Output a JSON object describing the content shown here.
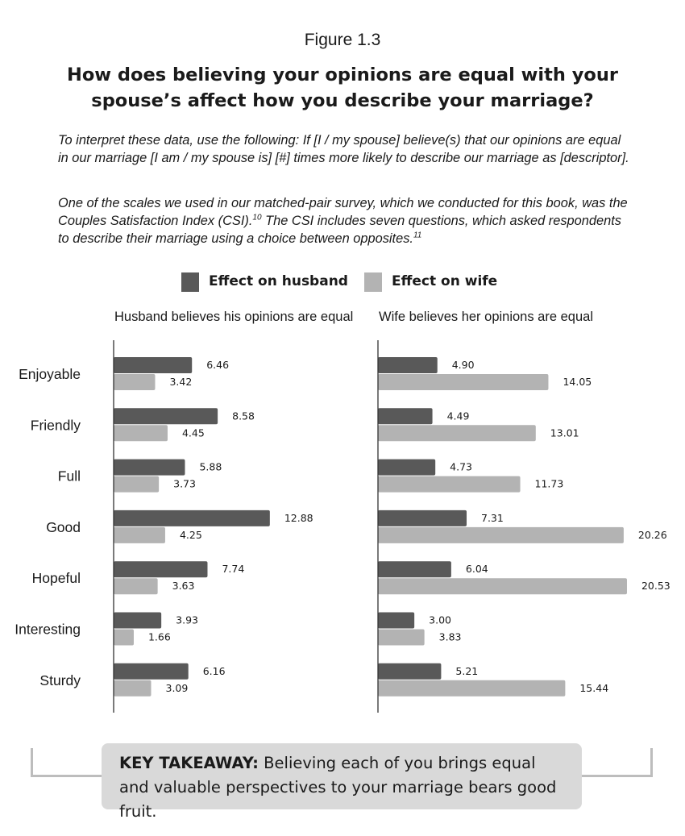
{
  "figure_label": "Figure 1.3",
  "title_line1": "How does believing your opinions are equal with your",
  "title_line2": "spouse’s affect how you describe your marriage?",
  "intro1": "To interpret these data, use the following: If [I / my spouse] believe(s) that our opinions are equal in our marriage [I am / my spouse is] [#] times more likely to describe our marriage as [descriptor].",
  "intro2_a": "One of the scales we used in our matched-pair survey, which we conducted for this book, was the Couples Satisfaction Index (CSI).",
  "intro2_sup1": "10",
  "intro2_b": " The CSI includes seven questions, which asked respondents to describe their marriage using a choice between opposites.",
  "intro2_sup2": "11",
  "colors": {
    "husband": "#595959",
    "wife": "#b3b3b3",
    "axis": "#333333"
  },
  "chart_data": {
    "type": "bar",
    "orientation": "horizontal",
    "legend": [
      "Effect on husband",
      "Effect on wife"
    ],
    "categories": [
      "Enjoyable",
      "Friendly",
      "Full",
      "Good",
      "Hopeful",
      "Interesting",
      "Sturdy"
    ],
    "panels": [
      {
        "title": "Husband believes his opinions are equal",
        "series": [
          {
            "name": "Effect on husband",
            "values": [
              6.46,
              8.58,
              5.88,
              12.88,
              7.74,
              3.93,
              6.16
            ],
            "labels": [
              "6.46",
              "8.58",
              "5.88",
              "12.88",
              "7.74",
              "3.93",
              "6.16"
            ]
          },
          {
            "name": "Effect on wife",
            "values": [
              3.42,
              4.45,
              3.73,
              4.25,
              3.63,
              1.66,
              3.09
            ],
            "labels": [
              "3.42",
              "4.45",
              "3.73",
              "4.25",
              "3.63",
              "1.66",
              "3.09"
            ]
          }
        ]
      },
      {
        "title": "Wife believes her opinions are equal",
        "series": [
          {
            "name": "Effect on husband",
            "values": [
              4.9,
              4.49,
              4.73,
              7.31,
              6.04,
              3.0,
              5.21
            ],
            "labels": [
              "4.90",
              "4.49",
              "4.73",
              "7.31",
              "6.04",
              "3.00",
              "5.21"
            ]
          },
          {
            "name": "Effect on wife",
            "values": [
              14.05,
              13.01,
              11.73,
              20.26,
              20.53,
              3.83,
              15.44
            ],
            "labels": [
              "14.05",
              "13.01",
              "11.73",
              "20.26",
              "20.53",
              "3.83",
              "15.44"
            ]
          }
        ]
      }
    ]
  },
  "takeaway": {
    "label": "KEY TAKEAWAY:",
    "text": " Believing each of you brings equal and valuable perspectives to your marriage bears good fruit."
  }
}
